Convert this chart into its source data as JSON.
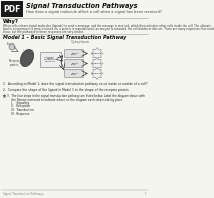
{
  "title": "Signal Transduction Pathways",
  "subtitle": "How does a signal molecule affect a cell when a signal has been received?",
  "why_title": "Why?",
  "why_lines": [
    "When cells release signal molecules (ligands) to send a message, and the message is received, which then activates other cells inside the cell. The ultimate",
    "goal in a response is a gene is turned on, a protein is manufactured, an enzyme is activated, the cell divides or dies etc. There are many responses that could",
    "occur, but the pathways to these responses are very similar."
  ],
  "model_title": "Model 1 – Basic Signal Transduction Pathway",
  "pdf_bg": "#1a1a1a",
  "pdf_text": "#ffffff",
  "page_bg": "#f5f5f0",
  "q1": "1.  According to Model 1, does the signal transduction pathway occur inside or outside of a cell?",
  "q2": "2.  Compare the shape of the ligand in Model 1 to the shape of the receptor protein.",
  "q3_lines": [
    "3.  The four steps in the signal transduction pathway are listed below. Label the diagram above with",
    "     the Roman numerals to indicate where on the diagram each step is taking place.",
    "     I.    Signaling",
    "     II.   Reception",
    "     III.  Transduction",
    "     IV.  Response"
  ],
  "footer": "Signal Transduction Pathways",
  "page_num": "1"
}
